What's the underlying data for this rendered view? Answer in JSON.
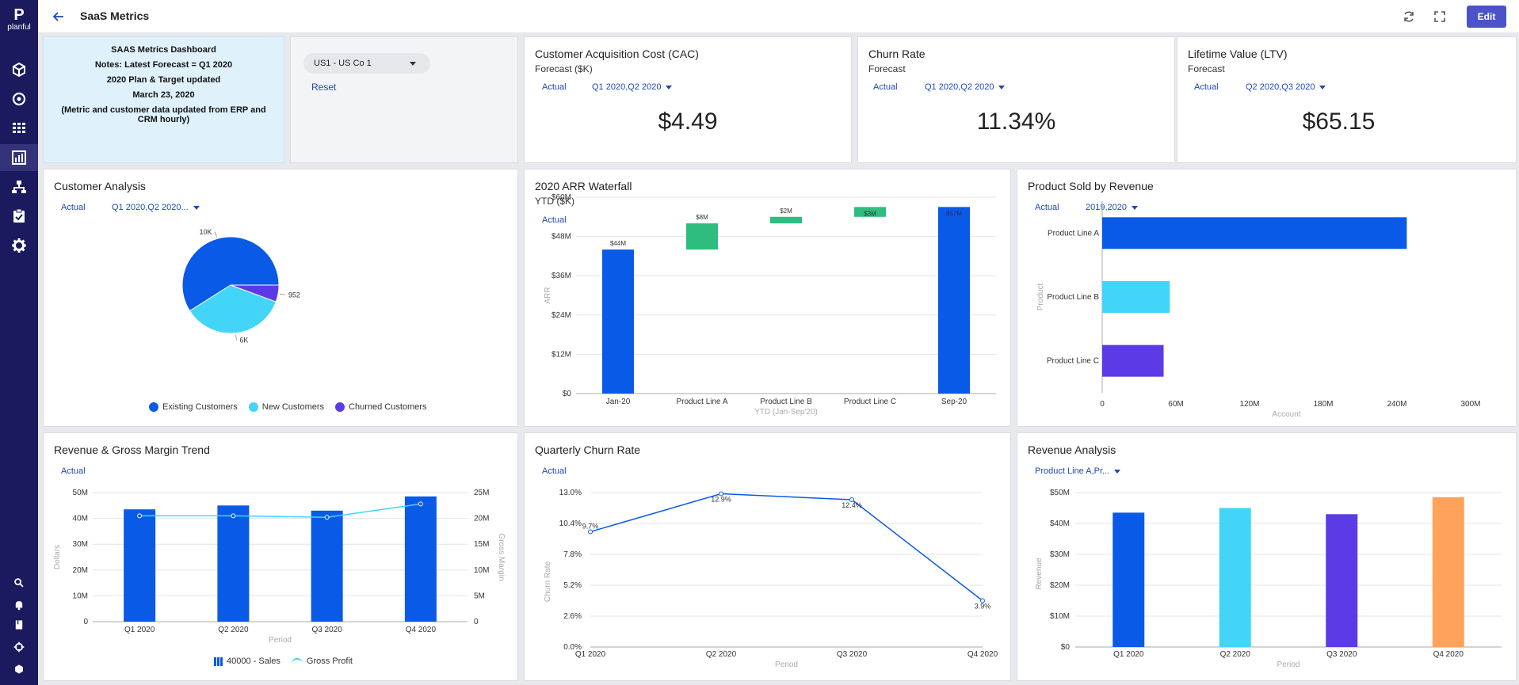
{
  "brand": {
    "name": "planful"
  },
  "header": {
    "title": "SaaS Metrics",
    "edit_label": "Edit"
  },
  "sidebar": {
    "items": [
      {
        "name": "cube-icon"
      },
      {
        "name": "target-icon"
      },
      {
        "name": "grid-icon"
      },
      {
        "name": "report-icon"
      },
      {
        "name": "hierarchy-icon"
      },
      {
        "name": "tasks-icon"
      },
      {
        "name": "gear-icon"
      }
    ],
    "bottom": [
      {
        "name": "search-icon"
      },
      {
        "name": "bell-icon"
      },
      {
        "name": "book-icon"
      },
      {
        "name": "crosshair-icon"
      },
      {
        "name": "cube-icon"
      }
    ]
  },
  "notes": {
    "lines": [
      "SAAS Metrics Dashboard",
      "Notes: Latest Forecast = Q1 2020",
      "2020 Plan & Target updated",
      "March 23, 2020",
      "(Metric and customer data updated from ERP and CRM hourly)"
    ]
  },
  "selector": {
    "entity": "US1 - US Co 1",
    "reset": "Reset"
  },
  "kpis": [
    {
      "title": "Customer Acquisition Cost (CAC)",
      "subtitle": "Forecast ($K)",
      "scenario": "Actual",
      "period": "Q1 2020,Q2 2020",
      "value": "$4.49"
    },
    {
      "title": "Churn Rate",
      "subtitle": "Forecast",
      "scenario": "Actual",
      "period": "Q1 2020,Q2 2020",
      "value": "11.34%"
    },
    {
      "title": "Lifetime Value (LTV)",
      "subtitle": "Forecast",
      "scenario": "Actual",
      "period": "Q2 2020,Q3 2020",
      "value": "$65.15"
    }
  ],
  "customer_analysis": {
    "title": "Customer Analysis",
    "scenario": "Actual",
    "period": "Q1 2020,Q2 2020...",
    "chart_data": {
      "type": "pie",
      "labels": [
        "Existing Customers",
        "New Customers",
        "Churned Customers"
      ],
      "values": [
        10000,
        6000,
        952
      ],
      "data_labels": [
        "10K",
        "6K",
        "952"
      ],
      "colors": [
        "#0a5ae8",
        "#42d5f7",
        "#5b3be6"
      ],
      "legend": "bottom"
    }
  },
  "arr_waterfall": {
    "title": "2020 ARR Waterfall",
    "subtitle": "YTD ($K)",
    "scenario": "Actual",
    "chart_data": {
      "type": "bar",
      "subtype": "waterfall",
      "categories": [
        "Jan-20",
        "Product Line A",
        "Product Line B",
        "Product Line C",
        "Sep-20"
      ],
      "starts": [
        0,
        44,
        52,
        54,
        0
      ],
      "ends": [
        44,
        52,
        54,
        57,
        57
      ],
      "data_labels": [
        "$44M",
        "$8M",
        "$2M",
        "$3M",
        "$57M"
      ],
      "xlabel": "YTD (Jan-Sep'20)",
      "ylabel": "ARR",
      "ylim": [
        0,
        60
      ],
      "yticks": [
        "$0",
        "$12M",
        "$24M",
        "$36M",
        "$48M",
        "$60M"
      ],
      "colors": [
        "#0a5ae8",
        "#2ebd7e",
        "#2ebd7e",
        "#2ebd7e",
        "#0a5ae8"
      ]
    }
  },
  "product_revenue": {
    "title": "Product Sold by Revenue",
    "scenario": "Actual",
    "period": "2019,2020",
    "chart_data": {
      "type": "bar",
      "orientation": "horizontal",
      "categories": [
        "Product Line A",
        "Product Line B",
        "Product Line C"
      ],
      "values": [
        248,
        55,
        50
      ],
      "xlabel": "Account",
      "ylabel": "Product",
      "xlim": [
        0,
        300
      ],
      "xticks": [
        "0",
        "60M",
        "120M",
        "180M",
        "240M",
        "300M"
      ],
      "colors": [
        "#0a5ae8",
        "#42d5f7",
        "#5b3be6"
      ]
    }
  },
  "revenue_trend": {
    "title": "Revenue & Gross Margin Trend",
    "scenario": "Actual",
    "chart_data": {
      "type": "bar",
      "categories": [
        "Q1 2020",
        "Q2 2020",
        "Q3 2020",
        "Q4 2020"
      ],
      "series": [
        {
          "name": "40000 - Sales",
          "values": [
            43.5,
            45,
            43,
            48.5
          ],
          "axis": "left",
          "color": "#0a5ae8"
        },
        {
          "name": "Gross Profit",
          "values": [
            20.5,
            20.5,
            20.2,
            22.8
          ],
          "axis": "right",
          "type": "line",
          "color": "#42d5f7"
        }
      ],
      "xlabel": "Period",
      "ylabel": "Dollars",
      "y2label": "Gross Margin",
      "ylim": [
        0,
        50
      ],
      "y2lim": [
        0,
        25
      ],
      "yticks": [
        "0",
        "10M",
        "20M",
        "30M",
        "40M",
        "50M"
      ],
      "y2ticks": [
        "0",
        "5M",
        "10M",
        "15M",
        "20M",
        "25M"
      ],
      "legend": "bottom"
    }
  },
  "quarterly_churn": {
    "title": "Quarterly Churn Rate",
    "scenario": "Actual",
    "chart_data": {
      "type": "line",
      "categories": [
        "Q1 2020",
        "Q2 2020",
        "Q3 2020",
        "Q4 2020"
      ],
      "values": [
        9.7,
        12.9,
        12.4,
        3.9
      ],
      "data_labels": [
        "9.7%",
        "12.9%",
        "12.4%",
        "3.9%"
      ],
      "xlabel": "Period",
      "ylabel": "Churn Rate",
      "ylim": [
        0,
        13
      ],
      "yticks": [
        "0.0%",
        "2.6%",
        "5.2%",
        "7.8%",
        "10.4%",
        "13.0%"
      ],
      "color": "#0a5ae8"
    }
  },
  "revenue_analysis": {
    "title": "Revenue Analysis",
    "filter": "Product Line A,Pr...",
    "chart_data": {
      "type": "bar",
      "categories": [
        "Q1 2020",
        "Q2 2020",
        "Q3 2020",
        "Q4 2020"
      ],
      "values": [
        43.5,
        45,
        43,
        48.5
      ],
      "xlabel": "Period",
      "ylabel": "Revenue",
      "ylim": [
        0,
        50
      ],
      "yticks": [
        "$0",
        "$10M",
        "$20M",
        "$30M",
        "$40M",
        "$50M"
      ],
      "colors": [
        "#0a5ae8",
        "#42d5f7",
        "#5b3be6",
        "#ffa35c"
      ]
    }
  }
}
